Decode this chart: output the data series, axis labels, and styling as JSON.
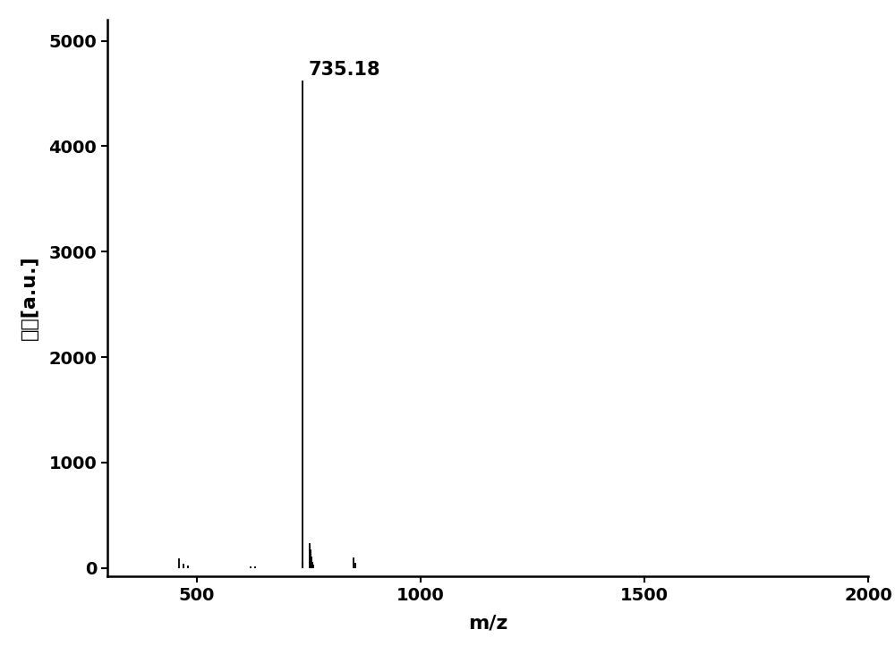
{
  "peaks": [
    {
      "mz": 460,
      "intensity": 95
    },
    {
      "mz": 470,
      "intensity": 40
    },
    {
      "mz": 480,
      "intensity": 25
    },
    {
      "mz": 620,
      "intensity": 18
    },
    {
      "mz": 630,
      "intensity": 12
    },
    {
      "mz": 735.18,
      "intensity": 4620
    },
    {
      "mz": 737,
      "intensity": 55
    },
    {
      "mz": 752,
      "intensity": 235
    },
    {
      "mz": 754,
      "intensity": 175
    },
    {
      "mz": 756,
      "intensity": 105
    },
    {
      "mz": 758,
      "intensity": 60
    },
    {
      "mz": 760,
      "intensity": 30
    },
    {
      "mz": 850,
      "intensity": 100
    },
    {
      "mz": 855,
      "intensity": 45
    }
  ],
  "annotation_mz": 735.18,
  "annotation_text": "735.18",
  "xlabel": "m/z",
  "ylabel": "强度[a.u.]",
  "xlim": [
    300,
    2000
  ],
  "ylim": [
    -80,
    5200
  ],
  "xticks": [
    500,
    1000,
    1500,
    2000
  ],
  "yticks": [
    0,
    1000,
    2000,
    3000,
    4000,
    5000
  ],
  "background_color": "#ffffff",
  "line_color": "#000000",
  "annotation_fontsize": 15,
  "axis_label_fontsize": 16,
  "tick_fontsize": 14
}
